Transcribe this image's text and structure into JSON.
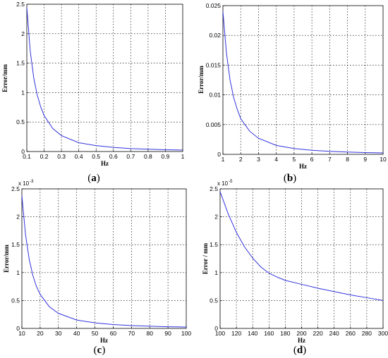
{
  "chart_data": [
    {
      "type": "line",
      "panel": "(a)",
      "xlabel": "Hz",
      "ylabel": "Error/mm",
      "exponent": "",
      "xlim": [
        0.1,
        1
      ],
      "ylim": [
        0,
        2.5
      ],
      "xticks": [
        0.1,
        0.2,
        0.3,
        0.4,
        0.5,
        0.6,
        0.7,
        0.8,
        0.9,
        1
      ],
      "yticks": [
        0,
        0.5,
        1,
        1.5,
        2,
        2.5
      ],
      "xtick_labels": [
        "0.1",
        "0.2",
        "0.3",
        "0.4",
        "0.5",
        "0.6",
        "0.7",
        "0.8",
        "0.9",
        "1"
      ],
      "ytick_labels": [
        "0",
        "0.5",
        "1",
        "1.5",
        "2",
        "2.5"
      ],
      "grid": true,
      "series": [
        {
          "color": "#3333dd",
          "x": [
            0.1,
            0.12,
            0.14,
            0.16,
            0.18,
            0.2,
            0.25,
            0.3,
            0.4,
            0.5,
            0.6,
            0.7,
            0.8,
            0.9,
            1.0
          ],
          "y": [
            2.45,
            1.7,
            1.25,
            0.96,
            0.76,
            0.61,
            0.39,
            0.27,
            0.15,
            0.1,
            0.07,
            0.05,
            0.04,
            0.03,
            0.025
          ]
        }
      ]
    },
    {
      "type": "line",
      "panel": "(b)",
      "xlabel": "Hz",
      "ylabel": "Error/mm",
      "exponent": "",
      "xlim": [
        1,
        10
      ],
      "ylim": [
        0,
        0.025
      ],
      "xticks": [
        1,
        2,
        3,
        4,
        5,
        6,
        7,
        8,
        9,
        10
      ],
      "yticks": [
        0,
        0.005,
        0.01,
        0.015,
        0.02,
        0.025
      ],
      "xtick_labels": [
        "1",
        "2",
        "3",
        "4",
        "5",
        "6",
        "7",
        "8",
        "9",
        "10"
      ],
      "ytick_labels": [
        "0",
        "0.005",
        "0.01",
        "0.015",
        "0.02",
        "0.025"
      ],
      "grid": true,
      "series": [
        {
          "color": "#3333dd",
          "x": [
            1,
            1.2,
            1.4,
            1.6,
            1.8,
            2,
            2.5,
            3,
            4,
            5,
            6,
            7,
            8,
            9,
            10
          ],
          "y": [
            0.024,
            0.017,
            0.0125,
            0.0096,
            0.0076,
            0.006,
            0.0039,
            0.0027,
            0.0015,
            0.00098,
            0.00068,
            0.0005,
            0.00038,
            0.0003,
            0.00024
          ]
        }
      ]
    },
    {
      "type": "line",
      "panel": "(c)",
      "xlabel": "Hz",
      "ylabel": "Error/mm",
      "exponent": "x 10",
      "exponent_power": "-3",
      "xlim": [
        10,
        100
      ],
      "ylim": [
        0,
        2.5
      ],
      "xticks": [
        10,
        20,
        30,
        40,
        50,
        60,
        70,
        80,
        90,
        100
      ],
      "yticks": [
        0,
        0.5,
        1,
        1.5,
        2,
        2.5
      ],
      "xtick_labels": [
        "10",
        "20",
        "30",
        "40",
        "50",
        "60",
        "70",
        "80",
        "90",
        "100"
      ],
      "ytick_labels": [
        "0",
        "0.5",
        "1",
        "1.5",
        "2",
        "2.5"
      ],
      "grid": true,
      "series": [
        {
          "color": "#3333dd",
          "x": [
            10,
            12,
            14,
            16,
            18,
            20,
            25,
            30,
            40,
            50,
            60,
            70,
            80,
            90,
            100
          ],
          "y": [
            2.38,
            1.68,
            1.24,
            0.95,
            0.75,
            0.61,
            0.39,
            0.27,
            0.15,
            0.1,
            0.07,
            0.05,
            0.04,
            0.03,
            0.024
          ]
        }
      ]
    },
    {
      "type": "line",
      "panel": "(d)",
      "xlabel": "Hz",
      "ylabel": "Error / mm",
      "exponent": "x 10",
      "exponent_power": "-5",
      "xlim": [
        100,
        300
      ],
      "ylim": [
        0,
        2.5
      ],
      "xticks": [
        100,
        120,
        140,
        160,
        180,
        200,
        220,
        240,
        260,
        280,
        300
      ],
      "yticks": [
        0,
        0.5,
        1,
        1.5,
        2,
        2.5
      ],
      "xtick_labels": [
        "100",
        "120",
        "140",
        "160",
        "180",
        "200",
        "220",
        "240",
        "260",
        "280",
        "300"
      ],
      "ytick_labels": [
        "0",
        "0.5",
        "1",
        "1.5",
        "2",
        "2.5"
      ],
      "grid": true,
      "series": [
        {
          "color": "#3333dd",
          "x": [
            100,
            110,
            120,
            130,
            140,
            150,
            160,
            170,
            180,
            200,
            220,
            240,
            260,
            280,
            300
          ],
          "y": [
            2.45,
            2.05,
            1.72,
            1.46,
            1.26,
            1.1,
            0.99,
            0.92,
            0.86,
            0.79,
            0.72,
            0.66,
            0.6,
            0.55,
            0.5
          ]
        }
      ]
    }
  ]
}
